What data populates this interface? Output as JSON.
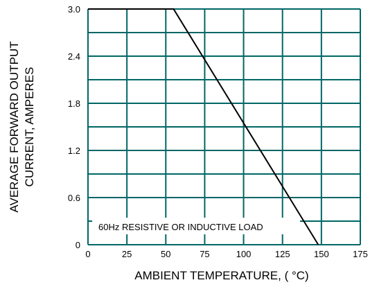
{
  "chart_data": {
    "type": "line",
    "xlabel": "AMBIENT TEMPERATURE, ( °C)",
    "ylabel_lines": [
      "AVERAGE FORWARD OUTPUT",
      "CURRENT, AMPERES"
    ],
    "xlim": [
      0,
      175
    ],
    "ylim": [
      0,
      3.0
    ],
    "x_ticks": [
      0,
      25,
      50,
      75,
      100,
      125,
      150,
      175
    ],
    "x_tick_labels": [
      "0",
      "25",
      "50",
      "75",
      "100",
      "125",
      "150",
      "175"
    ],
    "y_ticks": [
      0,
      0.6,
      1.2,
      1.8,
      2.4,
      3.0
    ],
    "y_tick_labels": [
      "0",
      "0.6",
      "1.2",
      "1.8",
      "2.4",
      "3.0"
    ],
    "x_grid": [
      0,
      25,
      50,
      75,
      100,
      125,
      150,
      175
    ],
    "y_grid": [
      0,
      0.3,
      0.6,
      0.9,
      1.2,
      1.5,
      1.8,
      2.1,
      2.4,
      2.7,
      3.0
    ],
    "grid": true,
    "grid_color": "#006666",
    "line_color": "#000000",
    "annotation": "60Hz RESISTIVE OR INDUCTIVE LOAD",
    "series": [
      {
        "x": [
          0,
          55,
          148
        ],
        "y": [
          3.0,
          3.0,
          0
        ]
      }
    ]
  }
}
